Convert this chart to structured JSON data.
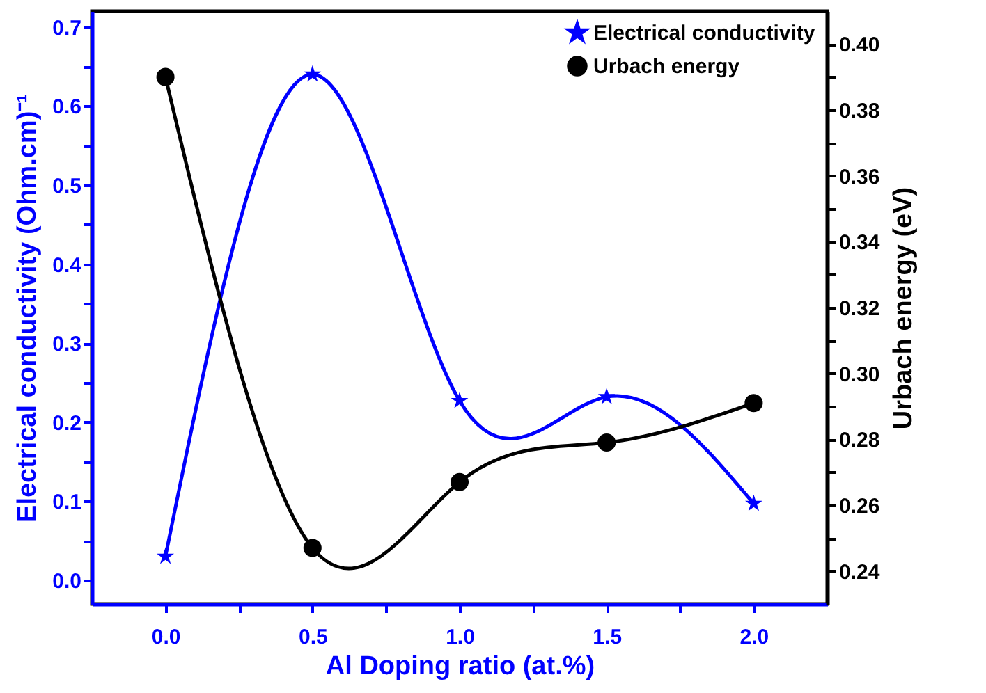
{
  "chart_data": {
    "type": "line",
    "xlabel": "Al Doping ratio (at.%)",
    "ylabel": "Electrical conductivity (Ohm.cm)⁻¹",
    "y2label": "Urbach energy (eV)",
    "x": [
      0.0,
      0.5,
      1.0,
      1.5,
      2.0
    ],
    "series": [
      {
        "name": "Electrical conductivity",
        "color": "#0000ff",
        "marker": "star",
        "values": [
          0.03,
          0.64,
          0.227,
          0.232,
          0.097
        ]
      },
      {
        "name": "Urbach energy",
        "color": "#000000",
        "marker": "circle",
        "axis": "y2",
        "values": [
          0.39,
          0.247,
          0.267,
          0.279,
          0.291
        ]
      }
    ],
    "xlim": [
      -0.25,
      2.25
    ],
    "xticks": [
      {
        "value": 0,
        "label": "0.0"
      },
      {
        "value": 0.25,
        "label": null
      },
      0.5,
      {
        "value": 0.75,
        "label": null
      },
      {
        "value": 1,
        "label": "1.0"
      },
      {
        "value": 1.25,
        "label": null
      },
      1.5,
      {
        "value": 1.75,
        "label": null
      },
      {
        "value": 2,
        "label": "2.0"
      }
    ],
    "ylim": [
      -0.03,
      0.72
    ],
    "yticks": [
      {
        "value": 0,
        "label": "0.0"
      },
      {
        "value": 0.05,
        "label": null
      },
      0.1,
      {
        "value": 0.15,
        "label": null
      },
      0.2,
      {
        "value": 0.25,
        "label": null
      },
      0.3,
      {
        "value": 0.35,
        "label": null
      },
      0.4,
      {
        "value": 0.45,
        "label": null
      },
      0.5,
      {
        "value": 0.55,
        "label": null
      },
      0.6,
      {
        "value": 0.65,
        "label": null
      },
      0.7
    ],
    "y2lim": [
      0.23,
      0.41
    ],
    "y2ticks": [
      0.24,
      {
        "value": 0.25,
        "label": null
      },
      0.26,
      {
        "value": 0.27,
        "label": null
      },
      0.28,
      {
        "value": 0.29,
        "label": null
      },
      {
        "value": 0.3,
        "label": "0.30"
      },
      {
        "value": 0.31,
        "label": null
      },
      0.32,
      {
        "value": 0.33,
        "label": null
      },
      0.34,
      {
        "value": 0.35,
        "label": null
      },
      0.36,
      {
        "value": 0.37,
        "label": null
      },
      0.38,
      {
        "value": 0.39,
        "label": null
      },
      {
        "value": 0.4,
        "label": "0.40"
      }
    ],
    "legend": "top right",
    "grid": false,
    "line_style": "solid"
  }
}
